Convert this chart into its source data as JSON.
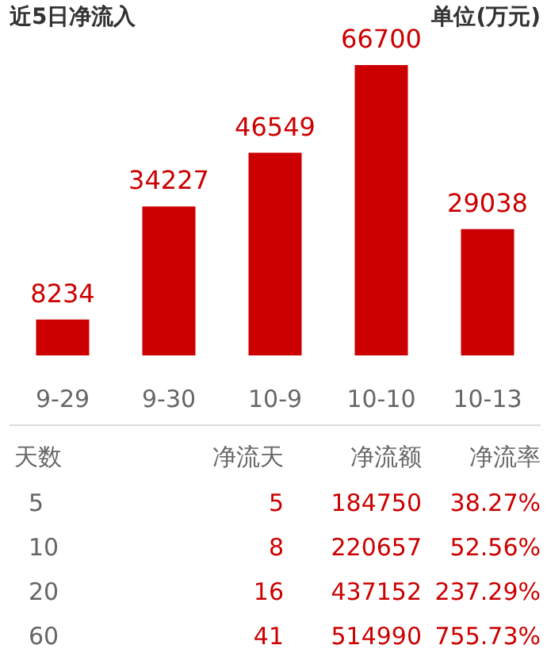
{
  "chart_data": [
    {
      "type": "bar",
      "title": "近5日净流入",
      "subtitle": "单位(万元)",
      "categories": [
        "9-29",
        "9-30",
        "10-9",
        "10-10",
        "10-13"
      ],
      "values": [
        8234,
        34227,
        46549,
        66700,
        29038
      ],
      "color": "#cc0000",
      "data_labels": true
    },
    {
      "type": "other",
      "categories": [
        "天数",
        "净流天",
        "净流额",
        "净流率"
      ],
      "cell_labels": [
        [
          "5",
          "5",
          "184750",
          "38.27%"
        ],
        [
          "10",
          "8",
          "220657",
          "52.56%"
        ],
        [
          "20",
          "16",
          "437152",
          "237.29%"
        ],
        [
          "60",
          "41",
          "514990",
          "755.73%"
        ]
      ]
    }
  ]
}
